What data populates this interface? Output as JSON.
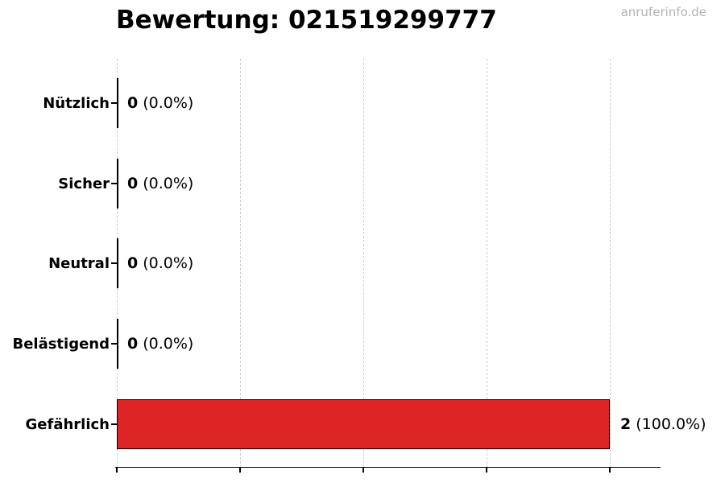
{
  "header": {
    "title": "Bewertung: 021519299777",
    "watermark": "anruferinfo.de"
  },
  "chart_data": {
    "type": "bar",
    "orientation": "horizontal",
    "title": "Bewertung: 021519299777",
    "categories": [
      "Nützlich",
      "Sicher",
      "Neutral",
      "Belästigend",
      "Gefährlich"
    ],
    "values": [
      0,
      0,
      0,
      0,
      2
    ],
    "counts": [
      "0",
      "0",
      "0",
      "0",
      "2"
    ],
    "pcts": [
      "(0.0%)",
      "(0.0%)",
      "(0.0%)",
      "(0.0%)",
      "(100.0%)"
    ],
    "total_votes": 2,
    "xlim": [
      0,
      2.2
    ],
    "xticks": [
      0,
      0.5,
      1,
      1.5,
      2
    ],
    "grid": true,
    "legend": false,
    "bar_color": "#de2525",
    "bar_edge_color": "#000000",
    "gridline_color": "#cdcdcd",
    "watermark_color": "#b3b3b3"
  }
}
